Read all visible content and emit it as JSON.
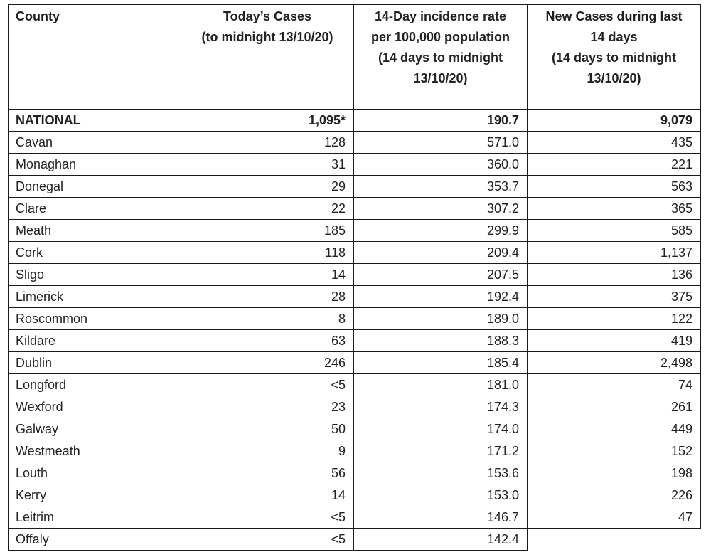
{
  "table": {
    "headers": [
      {
        "lines": [
          "County"
        ]
      },
      {
        "lines": [
          "Today’s Cases",
          "(to midnight 13/10/20)"
        ]
      },
      {
        "lines": [
          "14-Day incidence rate",
          "per 100,000 population",
          "(14 days to midnight",
          "13/10/20)"
        ]
      },
      {
        "lines": [
          "New Cases during last",
          "14 days",
          "(14 days to midnight",
          "13/10/20)"
        ]
      }
    ],
    "national": {
      "county": "NATIONAL",
      "today": "1,095*",
      "rate": "190.7",
      "new14": "9,079"
    },
    "rows": [
      {
        "county": "Cavan",
        "today": "128",
        "rate": "571.0",
        "new14": "435"
      },
      {
        "county": "Monaghan",
        "today": "31",
        "rate": "360.0",
        "new14": "221"
      },
      {
        "county": "Donegal",
        "today": "29",
        "rate": "353.7",
        "new14": "563"
      },
      {
        "county": "Clare",
        "today": "22",
        "rate": "307.2",
        "new14": "365"
      },
      {
        "county": "Meath",
        "today": "185",
        "rate": "299.9",
        "new14": "585"
      },
      {
        "county": "Cork",
        "today": "118",
        "rate": "209.4",
        "new14": "1,137"
      },
      {
        "county": "Sligo",
        "today": "14",
        "rate": "207.5",
        "new14": "136"
      },
      {
        "county": "Limerick",
        "today": "28",
        "rate": "192.4",
        "new14": "375"
      },
      {
        "county": "Roscommon",
        "today": "8",
        "rate": "189.0",
        "new14": "122"
      },
      {
        "county": "Kildare",
        "today": "63",
        "rate": "188.3",
        "new14": "419"
      },
      {
        "county": "Dublin",
        "today": "246",
        "rate": "185.4",
        "new14": "2,498"
      },
      {
        "county": "Longford",
        "today": "<5",
        "rate": "181.0",
        "new14": "74"
      },
      {
        "county": "Wexford",
        "today": "23",
        "rate": "174.3",
        "new14": "261"
      },
      {
        "county": "Galway",
        "today": "50",
        "rate": "174.0",
        "new14": "449"
      },
      {
        "county": "Westmeath",
        "today": "9",
        "rate": "171.2",
        "new14": "152"
      },
      {
        "county": "Louth",
        "today": "56",
        "rate": "153.6",
        "new14": "198"
      },
      {
        "county": "Kerry",
        "today": "14",
        "rate": "153.0",
        "new14": "226"
      },
      {
        "county": "Leitrim",
        "today": "<5",
        "rate": "146.7",
        "new14": "47"
      },
      {
        "county": "Offaly",
        "today": "<5",
        "rate": "142.4",
        "new14": null
      }
    ]
  }
}
